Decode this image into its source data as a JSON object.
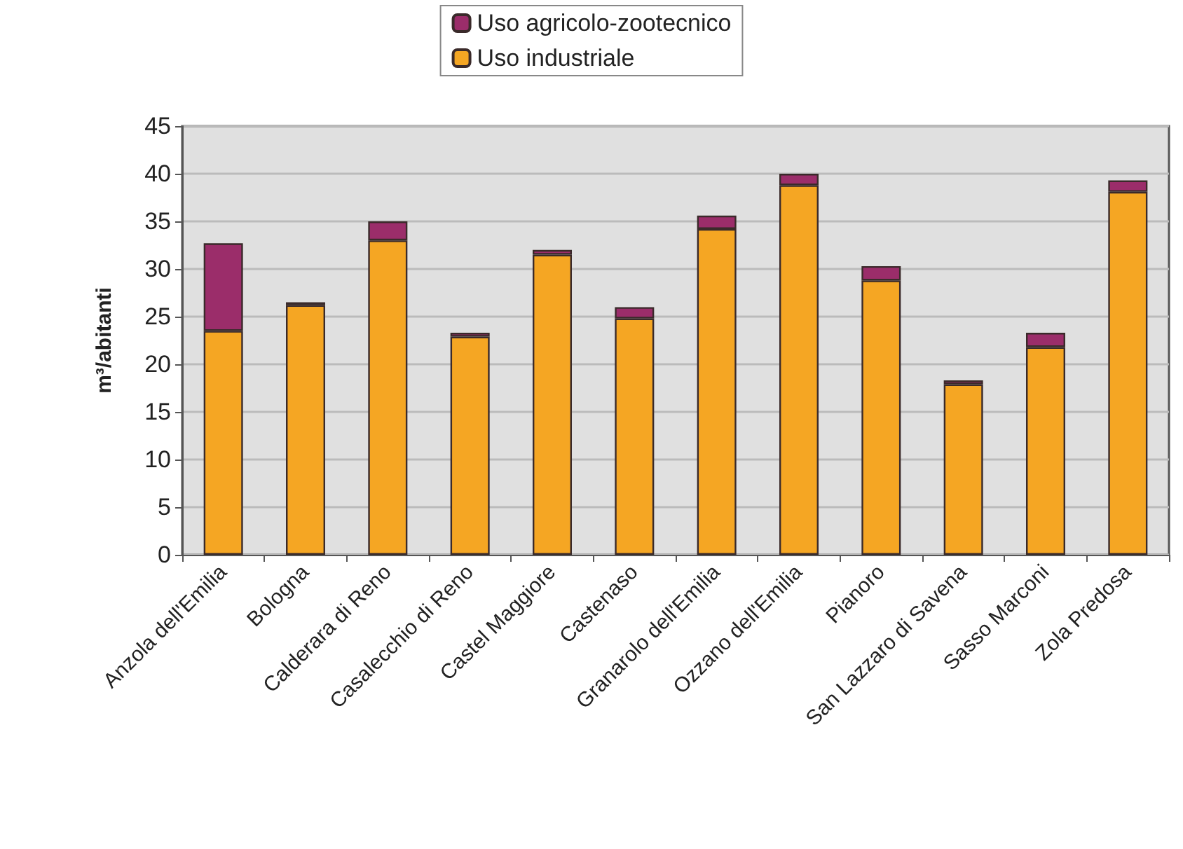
{
  "chart_data": {
    "type": "bar",
    "ylabel": "m³/abitanti",
    "categories": [
      "Anzola dell'Emilia",
      "Bologna",
      "Calderara di Reno",
      "Casalecchio di Reno",
      "Castel Maggiore",
      "Castenaso",
      "Granarolo dell'Emilia",
      "Ozzano dell'Emilia",
      "Pianoro",
      "San Lazzaro di Savena",
      "Sasso Marconi",
      "Zola Predosa"
    ],
    "series": [
      {
        "name": "Uso industriale",
        "color": "#f5a623",
        "values": [
          23.5,
          26.2,
          33,
          22.9,
          31.5,
          24.8,
          34.2,
          38.8,
          28.8,
          17.9,
          21.8,
          38.1
        ]
      },
      {
        "name": "Uso agricolo-zootecnico",
        "color": "#9b2d6a",
        "values": [
          9.2,
          0.3,
          2,
          0.4,
          0.5,
          1.2,
          1.4,
          1.2,
          1.5,
          0.4,
          1.5,
          1.2
        ]
      }
    ],
    "stacked": true,
    "ylim": [
      0,
      45
    ],
    "yticks": [
      0,
      5,
      10,
      15,
      20,
      25,
      30,
      35,
      40,
      45
    ],
    "grid": "y",
    "legend": "top"
  }
}
